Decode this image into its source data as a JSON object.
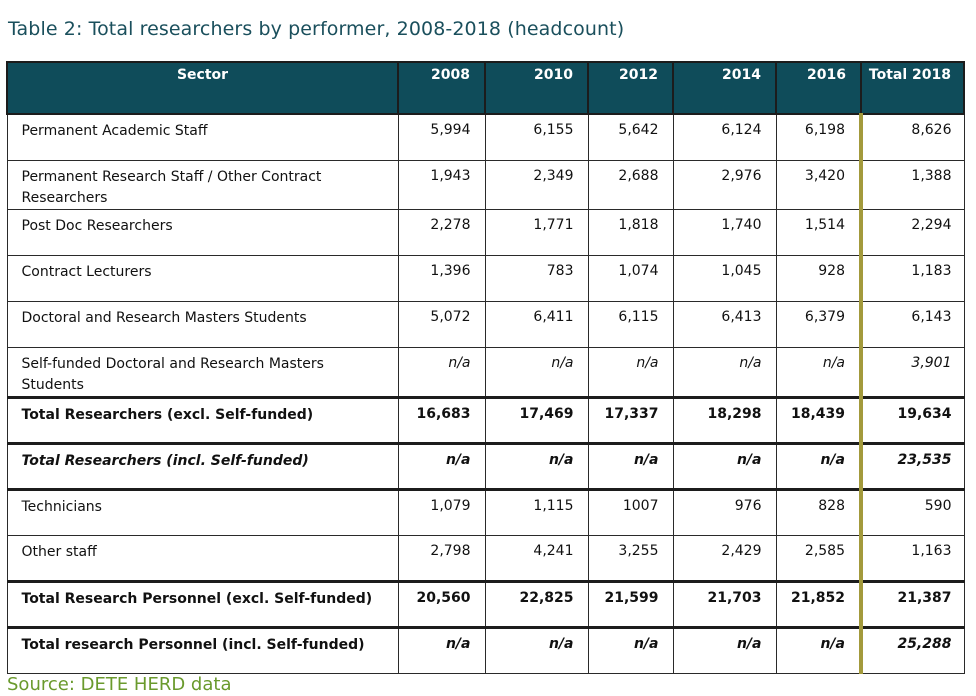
{
  "title": "Table 2:  Total researchers by performer, 2008-2018 (headcount)",
  "source": "Source: DETE HERD data",
  "headers": [
    "Sector",
    "2008",
    "2010",
    "2012",
    "2014",
    "2016",
    "Total 2018"
  ],
  "rows": [
    {
      "label": "Permanent Academic Staff",
      "values": [
        "5,994",
        "6,155",
        "5,642",
        "6,124",
        "6,198",
        "8,626"
      ]
    },
    {
      "label": "Permanent Research Staff / Other Contract Researchers",
      "values": [
        "1,943",
        "2,349",
        "2,688",
        "2,976",
        "3,420",
        "1,388"
      ]
    },
    {
      "label": "Post Doc Researchers",
      "values": [
        "2,278",
        "1,771",
        "1,818",
        "1,740",
        "1,514",
        "2,294"
      ]
    },
    {
      "label": "Contract Lecturers",
      "values": [
        "1,396",
        "783",
        "1,074",
        "1,045",
        "928",
        "1,183"
      ]
    },
    {
      "label": "Doctoral and Research Masters Students",
      "values": [
        "5,072",
        "6,411",
        "6,115",
        "6,413",
        "6,379",
        "6,143"
      ]
    },
    {
      "label": "Self-funded Doctoral and Research Masters Students",
      "values": [
        "n/a",
        "n/a",
        "n/a",
        "n/a",
        "n/a",
        "3,901"
      ]
    },
    {
      "label": "Total Researchers (excl. Self-funded)",
      "values": [
        "16,683",
        "17,469",
        "17,337",
        "18,298",
        "18,439",
        "19,634"
      ]
    },
    {
      "label": "Total Researchers (incl. Self-funded)",
      "values": [
        "n/a",
        "n/a",
        "n/a",
        "n/a",
        "n/a",
        "23,535"
      ]
    },
    {
      "label": "Technicians",
      "values": [
        "1,079",
        "1,115",
        "1007",
        "976",
        "828",
        "590"
      ]
    },
    {
      "label": "Other staff",
      "values": [
        "2,798",
        "4,241",
        "3,255",
        "2,429",
        "2,585",
        "1,163"
      ]
    },
    {
      "label": "Total Research Personnel (excl. Self-funded)",
      "values": [
        "20,560",
        "22,825",
        "21,599",
        "21,703",
        "21,852",
        "21,387"
      ]
    },
    {
      "label": "Total research Personnel (incl. Self-funded)",
      "values": [
        "n/a",
        "n/a",
        "n/a",
        "n/a",
        "n/a",
        "25,288"
      ]
    }
  ]
}
